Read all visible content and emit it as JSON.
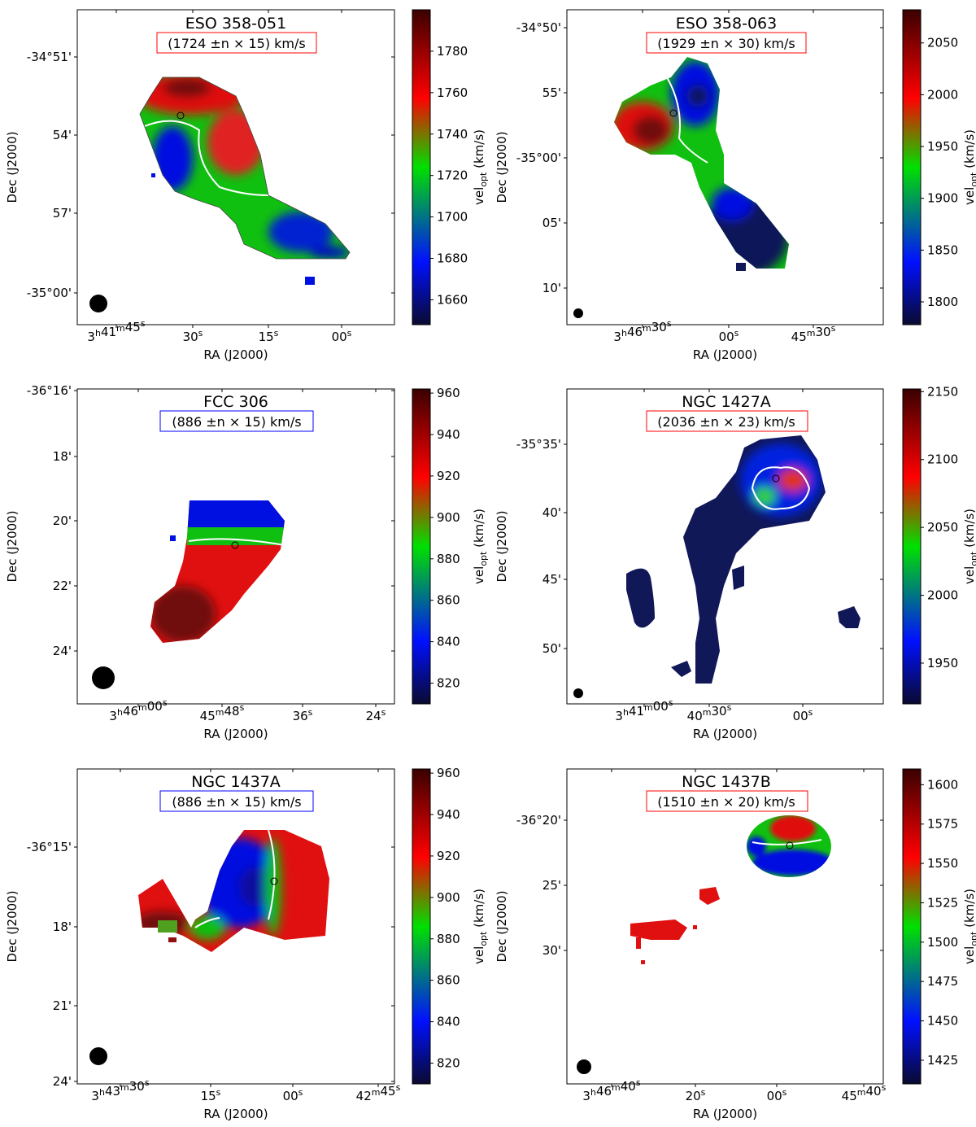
{
  "chart_data": [
    {
      "type": "heatmap",
      "title": "ESO 358-051",
      "subtitle": "(1724 ±n × 15) km/s",
      "subtitle_box_color": "#ff0000",
      "xlabel": "RA (J2000)",
      "ylabel": "Dec (J2000)",
      "colorbar_label": "vel_opt (km/s)",
      "colorbar_range": [
        1648,
        1800
      ],
      "colorbar_ticks": [
        1660,
        1680,
        1700,
        1720,
        1740,
        1760,
        1780
      ],
      "x_tick_labels": [
        {
          "h": "3",
          "hs": "h",
          "m": "41",
          "ms": "m",
          "s": "45",
          "ss": "s"
        },
        {
          "h": "",
          "hs": "",
          "m": "",
          "ms": "",
          "s": "30",
          "ss": "s"
        },
        {
          "h": "",
          "hs": "",
          "m": "",
          "ms": "",
          "s": "15",
          "ss": "s"
        },
        {
          "h": "",
          "hs": "",
          "m": "",
          "ms": "",
          "s": "00",
          "ss": "s"
        }
      ],
      "y_tick_labels": [
        "-34°51'",
        "54'",
        "57'",
        "-35°00'"
      ]
    },
    {
      "type": "heatmap",
      "title": "ESO 358-063",
      "subtitle": "(1929 ±n × 30) km/s",
      "subtitle_box_color": "#ff0000",
      "xlabel": "RA (J2000)",
      "ylabel": "Dec (J2000)",
      "colorbar_label": "vel_opt (km/s)",
      "colorbar_range": [
        1778,
        2082
      ],
      "colorbar_ticks": [
        1800,
        1850,
        1900,
        1950,
        2000,
        2050
      ],
      "x_tick_labels": [
        {
          "h": "3",
          "hs": "h",
          "m": "46",
          "ms": "m",
          "s": "30",
          "ss": "s"
        },
        {
          "h": "",
          "hs": "",
          "m": "",
          "ms": "",
          "s": "00",
          "ss": "s"
        },
        {
          "h": "",
          "hs": "",
          "m": "45",
          "ms": "m",
          "s": "30",
          "ss": "s"
        }
      ],
      "y_tick_labels": [
        "-34°50'",
        "55'",
        "-35°00'",
        "05'",
        "10'"
      ]
    },
    {
      "type": "heatmap",
      "title": "FCC 306",
      "subtitle": "(886 ±n × 15) km/s",
      "subtitle_box_color": "#0000ff",
      "xlabel": "RA (J2000)",
      "ylabel": "Dec (J2000)",
      "colorbar_label": "vel_opt (km/s)",
      "colorbar_range": [
        810,
        962
      ],
      "colorbar_ticks": [
        820,
        840,
        860,
        880,
        900,
        920,
        940,
        960
      ],
      "x_tick_labels": [
        {
          "h": "3",
          "hs": "h",
          "m": "46",
          "ms": "m",
          "s": "00",
          "ss": "s"
        },
        {
          "h": "",
          "hs": "",
          "m": "45",
          "ms": "m",
          "s": "48",
          "ss": "s"
        },
        {
          "h": "",
          "hs": "",
          "m": "",
          "ms": "",
          "s": "36",
          "ss": "s"
        },
        {
          "h": "",
          "hs": "",
          "m": "",
          "ms": "",
          "s": "24",
          "ss": "s"
        }
      ],
      "y_tick_labels": [
        "-36°16'",
        "18'",
        "20'",
        "22'",
        "24'"
      ]
    },
    {
      "type": "heatmap",
      "title": "NGC 1427A",
      "subtitle": "(2036 ±n × 23) km/s",
      "subtitle_box_color": "#ff0000",
      "xlabel": "RA (J2000)",
      "ylabel": "Dec (J2000)",
      "colorbar_label": "vel_opt (km/s)",
      "colorbar_range": [
        1920,
        2152
      ],
      "colorbar_ticks": [
        1950,
        2000,
        2050,
        2100,
        2150
      ],
      "x_tick_labels": [
        {
          "h": "3",
          "hs": "h",
          "m": "41",
          "ms": "m",
          "s": "00",
          "ss": "s"
        },
        {
          "h": "",
          "hs": "",
          "m": "40",
          "ms": "m",
          "s": "30",
          "ss": "s"
        },
        {
          "h": "",
          "hs": "",
          "m": "",
          "ms": "",
          "s": "00",
          "ss": "s"
        }
      ],
      "y_tick_labels": [
        "-35°35'",
        "40'",
        "45'",
        "50'"
      ]
    },
    {
      "type": "heatmap",
      "title": "NGC 1437A",
      "subtitle": "(886 ±n × 15) km/s",
      "subtitle_box_color": "#0000ff",
      "xlabel": "RA (J2000)",
      "ylabel": "Dec (J2000)",
      "colorbar_label": "vel_opt (km/s)",
      "colorbar_range": [
        810,
        962
      ],
      "colorbar_ticks": [
        820,
        840,
        860,
        880,
        900,
        920,
        940,
        960
      ],
      "x_tick_labels": [
        {
          "h": "3",
          "hs": "h",
          "m": "43",
          "ms": "m",
          "s": "30",
          "ss": "s"
        },
        {
          "h": "",
          "hs": "",
          "m": "",
          "ms": "",
          "s": "15",
          "ss": "s"
        },
        {
          "h": "",
          "hs": "",
          "m": "",
          "ms": "",
          "s": "00",
          "ss": "s"
        },
        {
          "h": "",
          "hs": "",
          "m": "42",
          "ms": "m",
          "s": "45",
          "ss": "s"
        }
      ],
      "y_tick_labels": [
        "-36°15'",
        "18'",
        "21'",
        "24'"
      ]
    },
    {
      "type": "heatmap",
      "title": "NGC 1437B",
      "subtitle": "(1510 ±n × 20) km/s",
      "subtitle_box_color": "#ff0000",
      "xlabel": "RA (J2000)",
      "ylabel": "Dec (J2000)",
      "colorbar_label": "vel_opt (km/s)",
      "colorbar_range": [
        1410,
        1610
      ],
      "colorbar_ticks": [
        1425,
        1450,
        1475,
        1500,
        1525,
        1550,
        1575,
        1600
      ],
      "x_tick_labels": [
        {
          "h": "3",
          "hs": "h",
          "m": "46",
          "ms": "m",
          "s": "40",
          "ss": "s"
        },
        {
          "h": "",
          "hs": "",
          "m": "",
          "ms": "",
          "s": "20",
          "ss": "s"
        },
        {
          "h": "",
          "hs": "",
          "m": "",
          "ms": "",
          "s": "00",
          "ss": "s"
        },
        {
          "h": "",
          "hs": "",
          "m": "45",
          "ms": "m",
          "s": "40",
          "ss": "s"
        }
      ],
      "y_tick_labels": [
        "-36°20'",
        "25'",
        "30'"
      ]
    }
  ],
  "colors": {
    "map_blue": "#0010e0",
    "map_green": "#20d020",
    "map_red": "#e01010",
    "map_darkred": "#701010",
    "map_navy": "#101858",
    "beam": "#000000",
    "frame": "#000000"
  }
}
